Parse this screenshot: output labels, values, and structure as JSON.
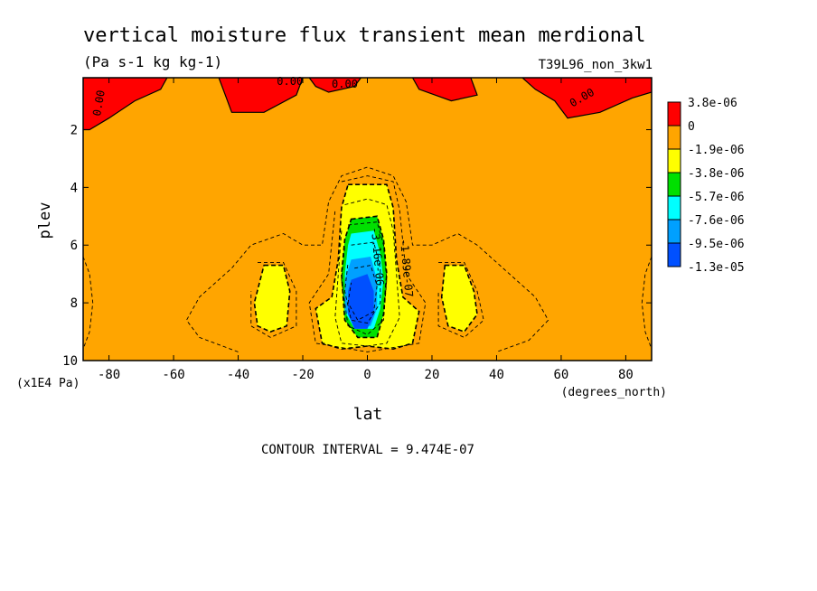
{
  "chart_data": {
    "type": "heatmap",
    "title": "vertical moisture flux transient mean merdional",
    "units": "(Pa s-1 kg kg-1)",
    "run_label": "T39L96_non_3kw1",
    "xlabel": "lat",
    "x_units": "(degrees_north)",
    "ylabel": "plev",
    "y_units": "(x1E4 Pa)",
    "xlim": [
      -88,
      88
    ],
    "ylim": [
      10,
      0.2
    ],
    "x_ticks": [
      -80,
      -60,
      -40,
      -20,
      0,
      20,
      40,
      60,
      80
    ],
    "x_tick_labels": [
      "-80",
      "-60",
      "-40",
      "-20",
      "0",
      "20",
      "40",
      "60",
      "80"
    ],
    "y_ticks": [
      2,
      4,
      6,
      8,
      10
    ],
    "y_tick_labels": [
      "2",
      "4",
      "6",
      "8",
      "10"
    ],
    "contour_interval_text": "CONTOUR INTERVAL = 9.474E-07",
    "legend": [
      {
        "label": "3.8e-06",
        "color": "#ff0000"
      },
      {
        "label": "0",
        "color": "#ffa500"
      },
      {
        "label": "-1.9e-06",
        "color": "#ffff00"
      },
      {
        "label": "-3.8e-06",
        "color": "#00e000"
      },
      {
        "label": "-5.7e-06",
        "color": "#00ffff"
      },
      {
        "label": "-7.6e-06",
        "color": "#00a0ff"
      },
      {
        "label": "-9.5e-06",
        "color": "#0050ff"
      },
      {
        "label": "-1.3e-05",
        "color": ""
      }
    ],
    "background_color": "#ffa500",
    "contour_labels": [
      {
        "text": "0.00",
        "lat": -82,
        "plev": 1.1,
        "rotate": -80
      },
      {
        "text": "0.00",
        "lat": -24,
        "plev": 0.45,
        "rotate": 0
      },
      {
        "text": "0.00",
        "lat": -7,
        "plev": 0.55,
        "rotate": 0
      },
      {
        "text": "0.00",
        "lat": 67,
        "plev": 1.0,
        "rotate": -30
      },
      {
        "text": "-1.89e-07",
        "lat": 11,
        "plev": 6.8,
        "rotate": 85
      },
      {
        "text": "-3.16e-06",
        "lat": 2,
        "plev": 6.4,
        "rotate": 85
      }
    ],
    "regions": [
      {
        "color": "#ff0000",
        "poly": [
          [
            -88,
            0.2
          ],
          [
            -62,
            0.2
          ],
          [
            -64,
            0.6
          ],
          [
            -72,
            1.0
          ],
          [
            -80,
            1.6
          ],
          [
            -86,
            2.0
          ],
          [
            -88,
            2.0
          ]
        ]
      },
      {
        "color": "#ff0000",
        "poly": [
          [
            -46,
            0.2
          ],
          [
            -20,
            0.2
          ],
          [
            -22,
            0.8
          ],
          [
            -32,
            1.4
          ],
          [
            -42,
            1.4
          ],
          [
            -44,
            0.8
          ]
        ]
      },
      {
        "color": "#ff0000",
        "poly": [
          [
            -18,
            0.2
          ],
          [
            -2,
            0.2
          ],
          [
            -4,
            0.5
          ],
          [
            -12,
            0.7
          ],
          [
            -16,
            0.5
          ]
        ]
      },
      {
        "color": "#ff0000",
        "poly": [
          [
            14,
            0.2
          ],
          [
            32,
            0.2
          ],
          [
            34,
            0.8
          ],
          [
            26,
            1.0
          ],
          [
            16,
            0.6
          ]
        ]
      },
      {
        "color": "#ff0000",
        "poly": [
          [
            48,
            0.2
          ],
          [
            88,
            0.2
          ],
          [
            88,
            0.7
          ],
          [
            82,
            0.9
          ],
          [
            72,
            1.4
          ],
          [
            62,
            1.6
          ],
          [
            58,
            1.0
          ],
          [
            52,
            0.6
          ]
        ]
      },
      {
        "color": "#ffff00",
        "poly": [
          [
            -32,
            6.7
          ],
          [
            -26,
            6.7
          ],
          [
            -24,
            7.6
          ],
          [
            -25,
            8.8
          ],
          [
            -30,
            9.0
          ],
          [
            -34,
            8.8
          ],
          [
            -35,
            8.0
          ]
        ]
      },
      {
        "color": "#ffff00",
        "poly": [
          [
            24,
            6.7
          ],
          [
            30,
            6.7
          ],
          [
            33,
            7.6
          ],
          [
            34,
            8.4
          ],
          [
            30,
            9.0
          ],
          [
            25,
            8.8
          ],
          [
            23,
            7.8
          ]
        ]
      },
      {
        "color": "#ffff00",
        "poly": [
          [
            -6,
            3.9
          ],
          [
            6,
            3.9
          ],
          [
            8,
            4.7
          ],
          [
            9,
            6.5
          ],
          [
            11,
            7.8
          ],
          [
            16,
            8.3
          ],
          [
            14,
            9.4
          ],
          [
            8,
            9.6
          ],
          [
            0,
            9.5
          ],
          [
            -8,
            9.6
          ],
          [
            -14,
            9.4
          ],
          [
            -16,
            8.2
          ],
          [
            -11,
            7.8
          ],
          [
            -9,
            6.5
          ],
          [
            -8,
            4.7
          ]
        ]
      },
      {
        "color": "#00e000",
        "poly": [
          [
            -5,
            5.1
          ],
          [
            3,
            5.0
          ],
          [
            5,
            5.8
          ],
          [
            6,
            7.0
          ],
          [
            5,
            8.4
          ],
          [
            3,
            9.2
          ],
          [
            -3,
            9.2
          ],
          [
            -7,
            8.6
          ],
          [
            -8,
            7.0
          ],
          [
            -7,
            5.8
          ]
        ]
      },
      {
        "color": "#00ffff",
        "poly": [
          [
            -5,
            5.6
          ],
          [
            2,
            5.5
          ],
          [
            4,
            6.3
          ],
          [
            5,
            7.2
          ],
          [
            4,
            8.2
          ],
          [
            2,
            8.9
          ],
          [
            -4,
            8.9
          ],
          [
            -7,
            8.3
          ],
          [
            -7,
            7.0
          ],
          [
            -6,
            6.0
          ]
        ]
      },
      {
        "color": "#00a0ff",
        "poly": [
          [
            -5,
            6.5
          ],
          [
            1,
            6.4
          ],
          [
            3,
            7.2
          ],
          [
            3,
            8.2
          ],
          [
            1,
            8.8
          ],
          [
            -4,
            8.8
          ],
          [
            -7,
            8.2
          ],
          [
            -7,
            7.2
          ]
        ]
      },
      {
        "color": "#0050ff",
        "poly": [
          [
            -5,
            7.2
          ],
          [
            0,
            7.0
          ],
          [
            2,
            7.6
          ],
          [
            2,
            8.4
          ],
          [
            0,
            8.9
          ],
          [
            -4,
            8.9
          ],
          [
            -6,
            8.4
          ],
          [
            -6,
            7.6
          ]
        ]
      }
    ],
    "dashed_contours": [
      [
        [
          -40,
          9.7
        ],
        [
          -52,
          9.2
        ],
        [
          -56,
          8.6
        ],
        [
          -52,
          7.8
        ],
        [
          -42,
          6.8
        ],
        [
          -36,
          6.0
        ],
        [
          -26,
          5.6
        ],
        [
          -20,
          6.0
        ],
        [
          -14,
          6.0
        ],
        [
          -12,
          4.5
        ],
        [
          -8,
          3.6
        ],
        [
          0,
          3.3
        ],
        [
          8,
          3.6
        ],
        [
          12,
          4.5
        ],
        [
          14,
          6.0
        ],
        [
          20,
          6.0
        ],
        [
          28,
          5.6
        ],
        [
          34,
          6.0
        ],
        [
          42,
          6.8
        ],
        [
          52,
          7.8
        ],
        [
          56,
          8.6
        ],
        [
          50,
          9.3
        ],
        [
          40,
          9.7
        ]
      ],
      [
        [
          -34,
          6.6
        ],
        [
          -26,
          6.6
        ],
        [
          -22,
          7.6
        ],
        [
          -22,
          8.8
        ],
        [
          -30,
          9.2
        ],
        [
          -36,
          8.8
        ],
        [
          -36,
          7.6
        ]
      ],
      [
        [
          22,
          6.6
        ],
        [
          30,
          6.6
        ],
        [
          34,
          7.6
        ],
        [
          36,
          8.6
        ],
        [
          30,
          9.2
        ],
        [
          22,
          8.8
        ],
        [
          22,
          7.6
        ]
      ],
      [
        [
          -8,
          3.8
        ],
        [
          0,
          3.6
        ],
        [
          8,
          3.8
        ],
        [
          10,
          4.8
        ],
        [
          12,
          7.0
        ],
        [
          18,
          8.0
        ],
        [
          16,
          9.4
        ],
        [
          0,
          9.7
        ],
        [
          -16,
          9.4
        ],
        [
          -18,
          8.0
        ],
        [
          -12,
          7.0
        ],
        [
          -10,
          4.8
        ]
      ],
      [
        [
          -7,
          4.6
        ],
        [
          0,
          4.4
        ],
        [
          6,
          4.6
        ],
        [
          8,
          5.5
        ],
        [
          9,
          7.0
        ],
        [
          10,
          8.5
        ],
        [
          6,
          9.4
        ],
        [
          0,
          9.5
        ],
        [
          -8,
          9.4
        ],
        [
          -10,
          8.5
        ],
        [
          -9,
          7.0
        ],
        [
          -8,
          5.5
        ]
      ],
      [
        [
          -6,
          5.3
        ],
        [
          3,
          5.2
        ],
        [
          5,
          6.0
        ],
        [
          6,
          7.2
        ],
        [
          5,
          8.6
        ],
        [
          0,
          9.1
        ],
        [
          -6,
          8.8
        ],
        [
          -8,
          7.2
        ],
        [
          -7,
          6.0
        ]
      ],
      [
        [
          -5,
          6.0
        ],
        [
          2,
          5.9
        ],
        [
          4,
          6.8
        ],
        [
          4,
          8.0
        ],
        [
          0,
          8.7
        ],
        [
          -5,
          8.6
        ],
        [
          -7,
          7.6
        ],
        [
          -6,
          6.6
        ]
      ],
      [
        [
          -4,
          6.8
        ],
        [
          1,
          6.7
        ],
        [
          3,
          7.4
        ],
        [
          2,
          8.3
        ],
        [
          -3,
          8.6
        ],
        [
          -6,
          8.0
        ],
        [
          -5,
          7.3
        ]
      ],
      [
        [
          -88,
          6.4
        ],
        [
          -86,
          7.0
        ],
        [
          -85,
          8.0
        ],
        [
          -86,
          9.0
        ],
        [
          -88,
          9.6
        ]
      ],
      [
        [
          88,
          6.4
        ],
        [
          86,
          7.0
        ],
        [
          85,
          8.0
        ],
        [
          86,
          9.0
        ],
        [
          88,
          9.6
        ]
      ]
    ],
    "solid_contours": [
      [
        [
          -88,
          2.0
        ],
        [
          -86,
          2.0
        ],
        [
          -80,
          1.6
        ],
        [
          -72,
          1.0
        ],
        [
          -64,
          0.6
        ],
        [
          -62,
          0.2
        ]
      ],
      [
        [
          -46,
          0.2
        ],
        [
          -44,
          0.8
        ],
        [
          -42,
          1.4
        ],
        [
          -32,
          1.4
        ],
        [
          -22,
          0.8
        ],
        [
          -20,
          0.2
        ]
      ],
      [
        [
          -18,
          0.2
        ],
        [
          -16,
          0.5
        ],
        [
          -12,
          0.7
        ],
        [
          -4,
          0.5
        ],
        [
          -2,
          0.2
        ]
      ],
      [
        [
          14,
          0.2
        ],
        [
          16,
          0.6
        ],
        [
          26,
          1.0
        ],
        [
          34,
          0.8
        ],
        [
          32,
          0.2
        ]
      ],
      [
        [
          48,
          0.2
        ],
        [
          52,
          0.6
        ],
        [
          58,
          1.0
        ],
        [
          62,
          1.6
        ],
        [
          72,
          1.4
        ],
        [
          82,
          0.9
        ],
        [
          88,
          0.7
        ]
      ]
    ]
  }
}
